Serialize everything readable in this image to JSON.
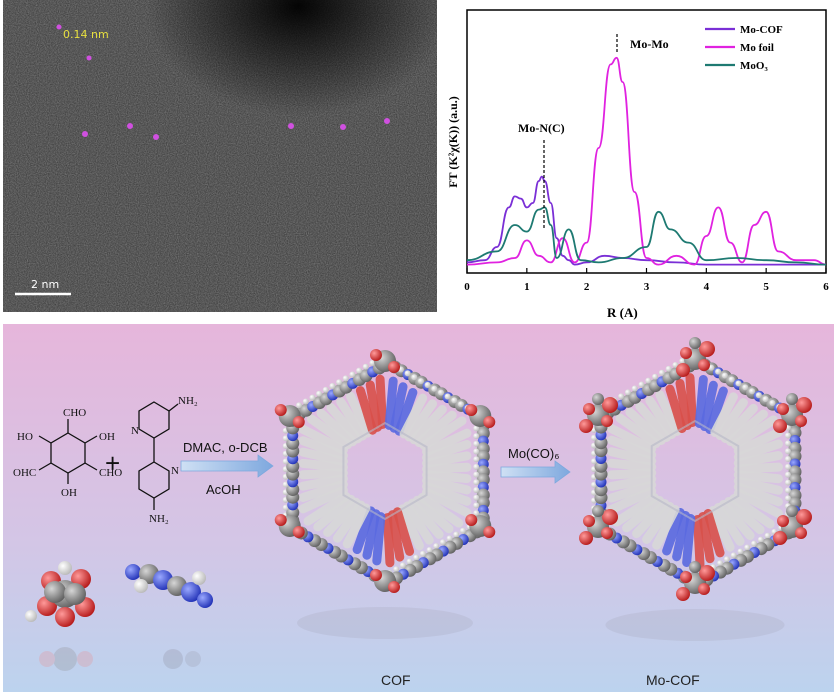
{
  "micrograph": {
    "measure_label": "0.14 nm",
    "scalebar_label": "2 nm",
    "highlight_color": "#d050e0"
  },
  "chart_data": {
    "type": "line",
    "xlabel": "R (A)",
    "ylabel": "FT (K²χ(K)) (a.u.)",
    "xlim": [
      0,
      6
    ],
    "xticks": [
      "0",
      "1",
      "2",
      "3",
      "4",
      "5",
      "6"
    ],
    "annotations": [
      "Mo-Mo",
      "Mo-N(C)"
    ],
    "legend_position": "top-right",
    "series": [
      {
        "name": "Mo-COF",
        "color": "#7a2fd6",
        "x": [
          0,
          0.3,
          0.5,
          0.7,
          0.8,
          0.9,
          1.0,
          1.1,
          1.2,
          1.25,
          1.3,
          1.4,
          1.5,
          1.6,
          1.7,
          1.8,
          2.0,
          2.3,
          2.6,
          3.0,
          3.5,
          4.0,
          4.5,
          5.0,
          5.5,
          6.0
        ],
        "y": [
          0.03,
          0.04,
          0.1,
          0.28,
          0.33,
          0.32,
          0.28,
          0.3,
          0.4,
          0.42,
          0.4,
          0.3,
          0.14,
          0.06,
          0.04,
          0.02,
          0.03,
          0.06,
          0.05,
          0.04,
          0.03,
          0.02,
          0.02,
          0.02,
          0.02,
          0.02
        ]
      },
      {
        "name": "Mo foil",
        "color": "#e022e0",
        "x": [
          0,
          0.5,
          0.8,
          1.0,
          1.2,
          1.4,
          1.6,
          1.8,
          2.0,
          2.2,
          2.4,
          2.5,
          2.6,
          2.8,
          3.0,
          3.2,
          3.5,
          3.8,
          4.0,
          4.2,
          4.4,
          4.6,
          4.8,
          5.0,
          5.2,
          5.5,
          5.8,
          6.0
        ],
        "y": [
          0.02,
          0.03,
          0.05,
          0.13,
          0.06,
          0.03,
          0.14,
          0.03,
          0.12,
          0.55,
          0.93,
          0.96,
          0.85,
          0.35,
          0.05,
          0.02,
          0.06,
          0.02,
          0.15,
          0.28,
          0.12,
          0.03,
          0.2,
          0.26,
          0.08,
          0.04,
          0.04,
          0.02
        ]
      },
      {
        "name": "MoO₃",
        "color": "#1e7a72",
        "x": [
          0,
          0.5,
          0.8,
          1.0,
          1.2,
          1.3,
          1.4,
          1.5,
          1.7,
          1.9,
          2.2,
          2.6,
          3.0,
          3.2,
          3.4,
          3.7,
          4.0,
          4.5,
          5.0,
          5.5,
          6.0
        ],
        "y": [
          0.04,
          0.08,
          0.2,
          0.17,
          0.27,
          0.28,
          0.2,
          0.05,
          0.18,
          0.04,
          0.03,
          0.05,
          0.1,
          0.26,
          0.18,
          0.12,
          0.04,
          0.05,
          0.04,
          0.03,
          0.02
        ]
      }
    ]
  },
  "scheme": {
    "reagent_aldehyde": [
      "CHO",
      "HO",
      "OH",
      "OHC",
      "CHO",
      "OH"
    ],
    "plus": "+",
    "reagent_amine": [
      "NH₂",
      "N",
      "N",
      "NH₂"
    ],
    "step1_top": "DMAC, o-DCB",
    "step1_bottom": "AcOH",
    "step2_label": "Mo(CO)₆",
    "product1_label": "COF",
    "product2_label": "Mo-COF",
    "colors": {
      "bg_top": "#e5b4da",
      "bg_bottom": "#bfd3ee",
      "carbon": "#8c8c8c",
      "oxygen": "#e23a3a",
      "nitrogen": "#3b4fe0",
      "hydrogen": "#f0f0f0",
      "arrow": "#8fb5e4"
    }
  }
}
